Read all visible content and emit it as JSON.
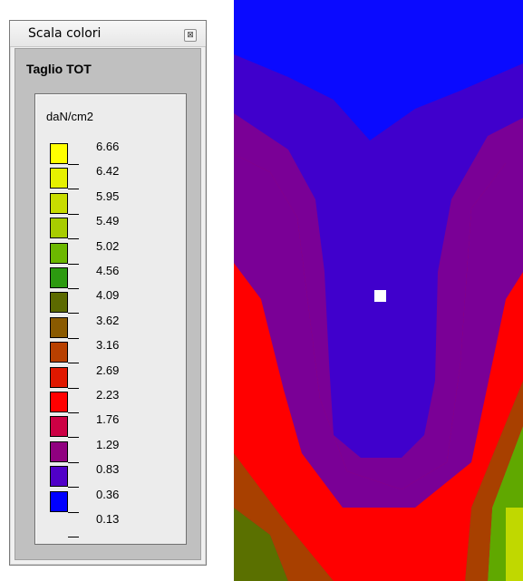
{
  "panel": {
    "window_title": "Scala colori",
    "close_glyph": "⊠",
    "section_title": "Taglio TOT",
    "unit": "daN/cm2",
    "scale": [
      {
        "label": "6.66",
        "color": "#ffff00"
      },
      {
        "label": "6.42",
        "color": "#e6f000"
      },
      {
        "label": "5.95",
        "color": "#c8dc00"
      },
      {
        "label": "5.49",
        "color": "#a8cc00"
      },
      {
        "label": "5.02",
        "color": "#6cb800"
      },
      {
        "label": "4.56",
        "color": "#2c9a10"
      },
      {
        "label": "4.09",
        "color": "#5c6a00"
      },
      {
        "label": "3.62",
        "color": "#8a5a00"
      },
      {
        "label": "3.16",
        "color": "#b84000"
      },
      {
        "label": "2.69",
        "color": "#e01800"
      },
      {
        "label": "2.23",
        "color": "#ff0000"
      },
      {
        "label": "1.76",
        "color": "#cc0044"
      },
      {
        "label": "1.29",
        "color": "#900080"
      },
      {
        "label": "0.83",
        "color": "#5000c8"
      },
      {
        "label": "0.36",
        "color": "#0000ff"
      },
      {
        "label": "0.13",
        "color": ""
      }
    ]
  },
  "map": {
    "colors": {
      "blue": "#0a0aff",
      "indigo": "#4000cc",
      "purple": "#7a0096",
      "crimson": "#b80048",
      "red": "#ff0000",
      "dark_red": "#d81000",
      "orange_brown": "#a84000",
      "brown": "#7a5800",
      "olive": "#5a7000",
      "green": "#60a800",
      "yellow_green": "#c0d800"
    }
  }
}
